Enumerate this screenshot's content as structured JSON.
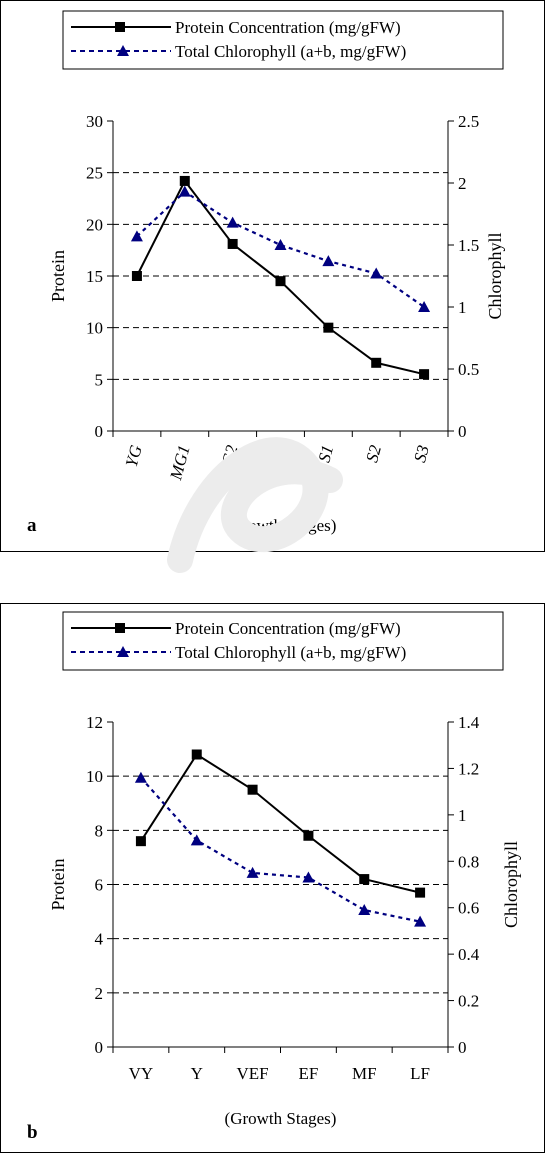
{
  "chart_data": [
    {
      "type": "line",
      "panel_label": "a",
      "xlabel": "(Growth Stages)",
      "ylabel": "Protein",
      "y2label": "Chlorophyll",
      "categories": [
        "YG",
        "MG1",
        "MG2",
        "MG3",
        "S1",
        "S2",
        "S3"
      ],
      "italic_categories": true,
      "ylim": [
        0,
        30
      ],
      "yticks": [
        "0",
        "5",
        "10",
        "15",
        "20",
        "25",
        "30"
      ],
      "y2lim": [
        0,
        2.5
      ],
      "y2ticks": [
        "0",
        "0.5",
        "1",
        "1.5",
        "2",
        "2.5"
      ],
      "grid": "horizontal dashed",
      "legend_position": "top",
      "series": [
        {
          "name": "Protein Concentration (mg/gFW)",
          "axis": "left",
          "marker": "square",
          "line": "solid",
          "color": "#000000",
          "values": [
            15.0,
            24.2,
            18.1,
            14.5,
            10.0,
            6.6,
            5.5
          ]
        },
        {
          "name": "Total Chlorophyll (a+b, mg/gFW)",
          "axis": "right",
          "marker": "triangle",
          "line": "dotted",
          "color": "#000080",
          "values": [
            1.57,
            1.93,
            1.68,
            1.5,
            1.37,
            1.27,
            1.0
          ]
        }
      ]
    },
    {
      "type": "line",
      "panel_label": "b",
      "xlabel": "(Growth Stages)",
      "ylabel": "Protein",
      "y2label": "Chlorophyll",
      "categories": [
        "VY",
        "Y",
        "VEF",
        "EF",
        "MF",
        "LF"
      ],
      "italic_categories": false,
      "ylim": [
        0,
        12
      ],
      "yticks": [
        "0",
        "2",
        "4",
        "6",
        "8",
        "10",
        "12"
      ],
      "y2lim": [
        0,
        1.4
      ],
      "y2ticks": [
        "0",
        "0.2",
        "0.4",
        "0.6",
        "0.8",
        "1",
        "1.2",
        "1.4"
      ],
      "grid": "horizontal dashed",
      "legend_position": "top",
      "series": [
        {
          "name": "Protein Concentration (mg/gFW)",
          "axis": "left",
          "marker": "square",
          "line": "solid",
          "color": "#000000",
          "values": [
            7.6,
            10.8,
            9.5,
            7.8,
            6.2,
            5.7
          ]
        },
        {
          "name": "Total Chlorophyll (a+b, mg/gFW)",
          "axis": "right",
          "marker": "triangle",
          "line": "dotted",
          "color": "#000080",
          "values": [
            1.16,
            0.89,
            0.75,
            0.73,
            0.59,
            0.54
          ]
        }
      ]
    }
  ]
}
